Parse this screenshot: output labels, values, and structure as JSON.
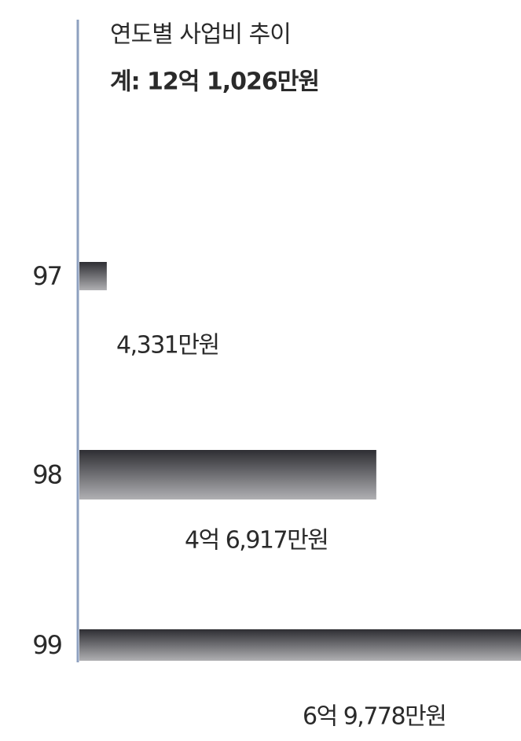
{
  "chart_data": {
    "type": "hbar",
    "title": "연도별 사업비 추이",
    "subtitle": "계: 12억 1,026만원",
    "categories": [
      "97",
      "98",
      "99"
    ],
    "values": [
      4331,
      46917,
      69778
    ],
    "value_labels": [
      "4,331만원",
      "4억 6,917만원",
      "6억 9,778만원"
    ],
    "color": "#3a3a3e"
  }
}
